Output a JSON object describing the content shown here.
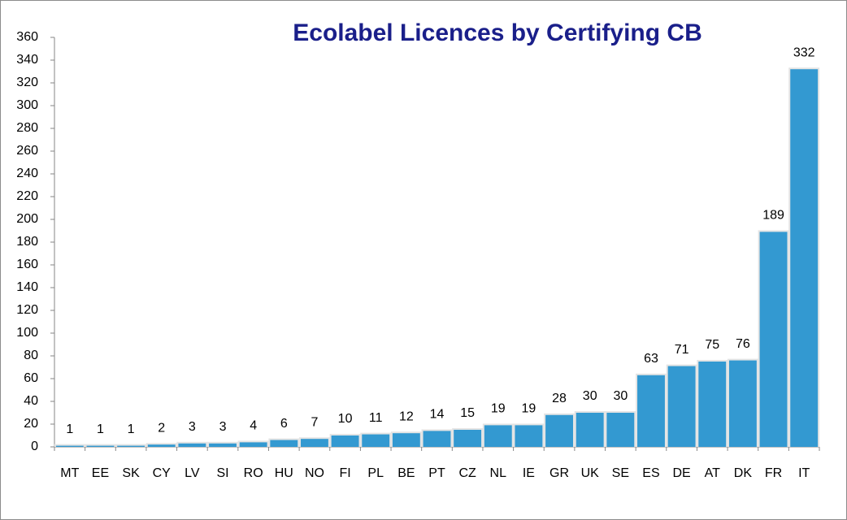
{
  "chart_data": {
    "type": "bar",
    "title": "Ecolabel Licences by Certifying CB",
    "categories": [
      "MT",
      "EE",
      "SK",
      "CY",
      "LV",
      "SI",
      "RO",
      "HU",
      "NO",
      "FI",
      "PL",
      "BE",
      "PT",
      "CZ",
      "NL",
      "IE",
      "GR",
      "UK",
      "SE",
      "ES",
      "DE",
      "AT",
      "DK",
      "FR",
      "IT"
    ],
    "values": [
      1,
      1,
      1,
      2,
      3,
      3,
      4,
      6,
      7,
      10,
      11,
      12,
      14,
      15,
      19,
      19,
      28,
      30,
      30,
      63,
      71,
      75,
      76,
      189,
      332
    ],
    "color": "#3399d1",
    "ylim": [
      0,
      360
    ],
    "yticks": [
      0,
      20,
      40,
      60,
      80,
      100,
      120,
      140,
      160,
      180,
      200,
      220,
      240,
      260,
      280,
      300,
      320,
      340,
      360
    ],
    "grid": false
  }
}
